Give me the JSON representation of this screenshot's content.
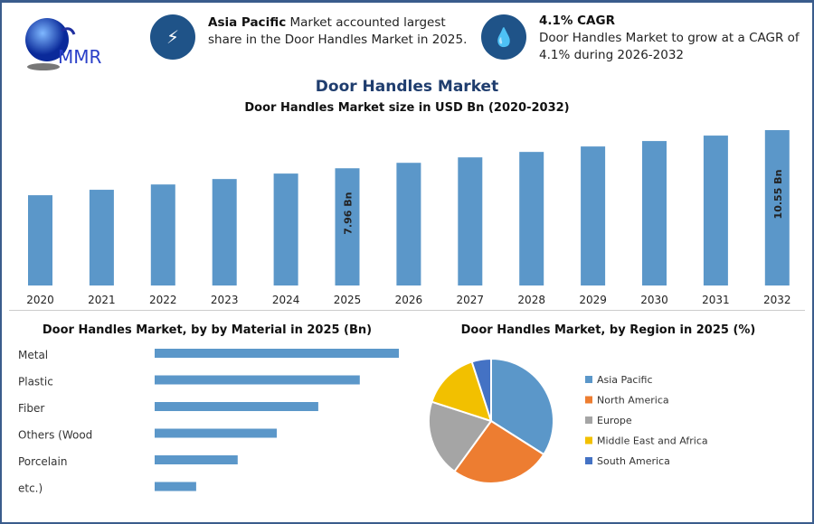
{
  "header": {
    "logo_text": "MMR",
    "info1": {
      "icon": "lightning-icon",
      "bold": "Asia Pacific",
      "text": " Market accounted largest share in the Door Handles Market in 2025."
    },
    "info2": {
      "icon": "growth-icon",
      "bold": "4.1% CAGR",
      "text": "Door Handles Market to grow at a CAGR of 4.1% during 2026-2032"
    }
  },
  "title": "Door Handles Market",
  "colors": {
    "bar": "#5b97c9",
    "accent": "#1f5388"
  },
  "chart_data": [
    {
      "type": "bar",
      "title": "Door Handles Market size in USD Bn (2020-2032)",
      "categories": [
        "2020",
        "2021",
        "2022",
        "2023",
        "2024",
        "2025",
        "2026",
        "2027",
        "2028",
        "2029",
        "2030",
        "2031",
        "2032"
      ],
      "values": [
        6.13,
        6.5,
        6.86,
        7.23,
        7.6,
        7.96,
        8.33,
        8.7,
        9.07,
        9.44,
        9.81,
        10.18,
        10.55
      ],
      "data_labels": {
        "2025": "7.96 Bn",
        "2032": "10.55 Bn"
      },
      "grid": false
    },
    {
      "type": "bar",
      "orientation": "horizontal",
      "title": "Door Handles Market, by by Material in 2025 (Bn)",
      "categories": [
        "Metal",
        "Plastic",
        "Fiber",
        "Others (Wood",
        "Porcelain",
        "etc.)"
      ],
      "values": [
        1.0,
        0.84,
        0.67,
        0.5,
        0.34,
        0.17
      ]
    },
    {
      "type": "pie",
      "title": "Door Handles Market, by Region in 2025 (%)",
      "legend_position": "right",
      "slices": [
        {
          "name": "Asia Pacific",
          "value": 34,
          "color": "#5b97c9"
        },
        {
          "name": "North America",
          "value": 26,
          "color": "#ed7d31"
        },
        {
          "name": "Europe",
          "value": 20,
          "color": "#a5a5a5"
        },
        {
          "name": "Middle East and Africa",
          "value": 15,
          "color": "#f2c000"
        },
        {
          "name": "South America",
          "value": 5,
          "color": "#4472c4"
        }
      ]
    }
  ]
}
